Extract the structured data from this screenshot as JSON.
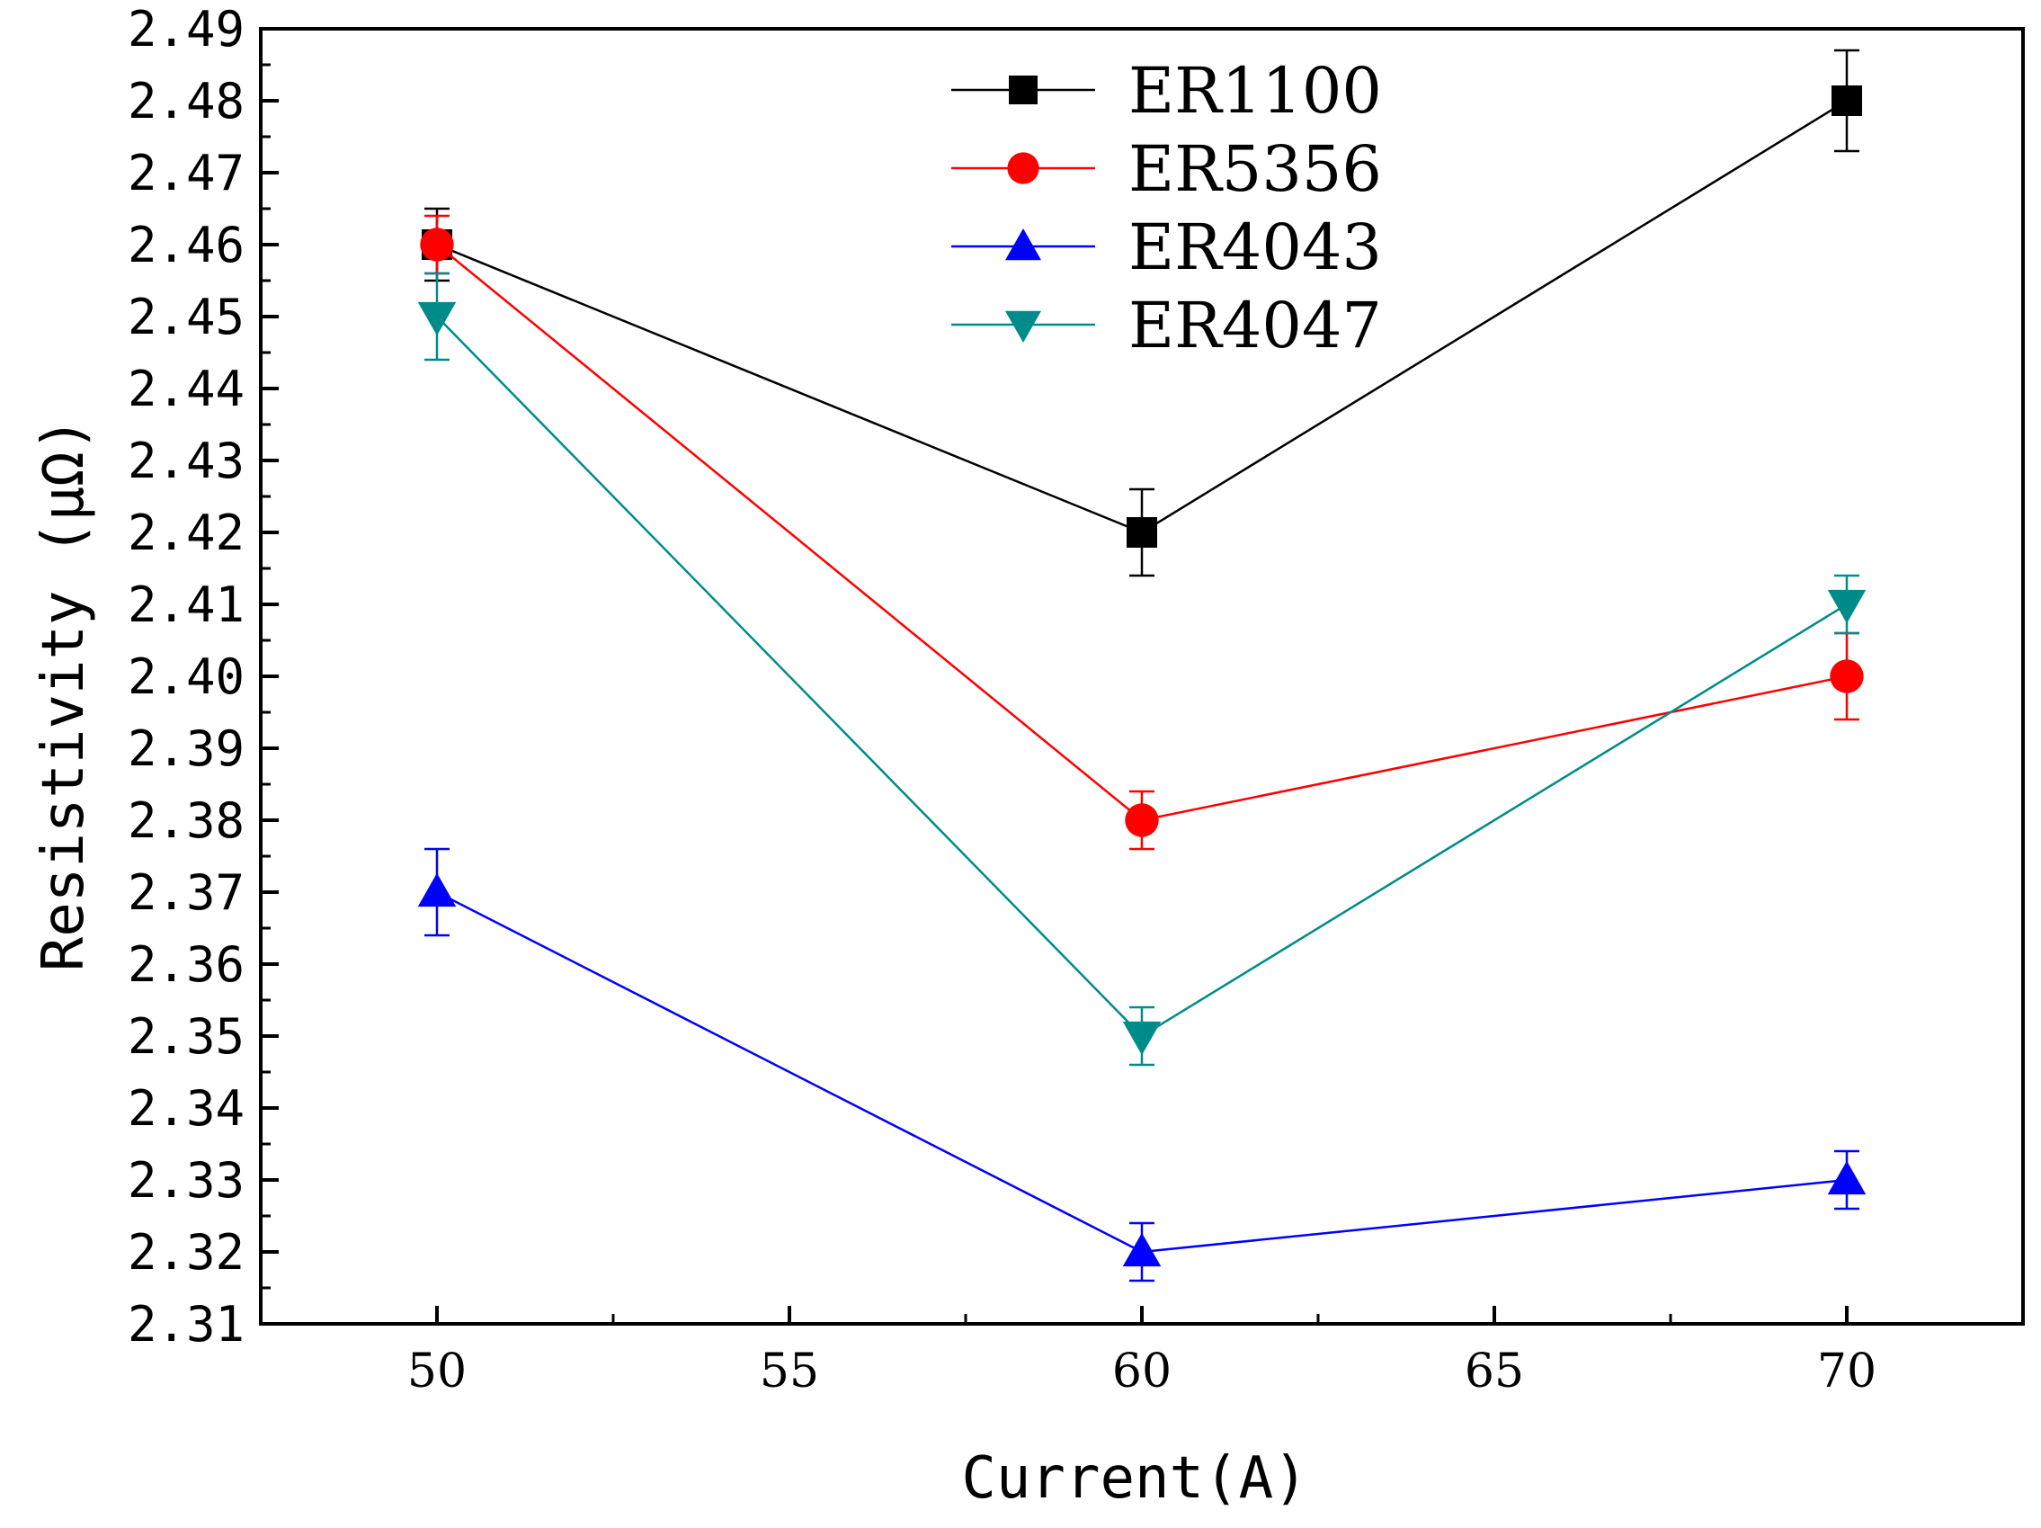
{
  "chart_data": {
    "type": "line",
    "title": "",
    "xlabel": "Current(A)",
    "ylabel": "Resistivity (μΩ)",
    "xlim": [
      47.5,
      72.5
    ],
    "ylim": [
      2.31,
      2.49
    ],
    "x_ticks": [
      50,
      55,
      60,
      65,
      70
    ],
    "x_tick_labels": [
      "50",
      "55",
      "60",
      "65",
      "70"
    ],
    "y_ticks": [
      2.31,
      2.32,
      2.33,
      2.34,
      2.35,
      2.36,
      2.37,
      2.38,
      2.39,
      2.4,
      2.41,
      2.42,
      2.43,
      2.44,
      2.45,
      2.46,
      2.47,
      2.48,
      2.49
    ],
    "y_tick_labels": [
      "2.31",
      "2.32",
      "2.33",
      "2.34",
      "2.35",
      "2.36",
      "2.37",
      "2.38",
      "2.39",
      "2.40",
      "2.41",
      "2.42",
      "2.43",
      "2.44",
      "2.45",
      "2.46",
      "2.47",
      "2.48",
      "2.49"
    ],
    "grid": false,
    "legend_position": "top-center",
    "x": [
      50,
      60,
      70
    ],
    "series": [
      {
        "name": "ER1100",
        "color": "#000000",
        "marker": "square",
        "values": [
          2.46,
          2.42,
          2.48
        ],
        "errors": [
          0.005,
          0.006,
          0.007
        ]
      },
      {
        "name": "ER5356",
        "color": "#ff0000",
        "marker": "circle",
        "values": [
          2.46,
          2.38,
          2.4
        ],
        "errors": [
          0.004,
          0.004,
          0.006
        ]
      },
      {
        "name": "ER4043",
        "color": "#0000ff",
        "marker": "triangle-up",
        "values": [
          2.37,
          2.32,
          2.33
        ],
        "errors": [
          0.006,
          0.004,
          0.004
        ]
      },
      {
        "name": "ER4047",
        "color": "#008b8b",
        "marker": "triangle-down",
        "values": [
          2.45,
          2.35,
          2.41
        ],
        "errors": [
          0.006,
          0.004,
          0.004
        ]
      }
    ]
  }
}
